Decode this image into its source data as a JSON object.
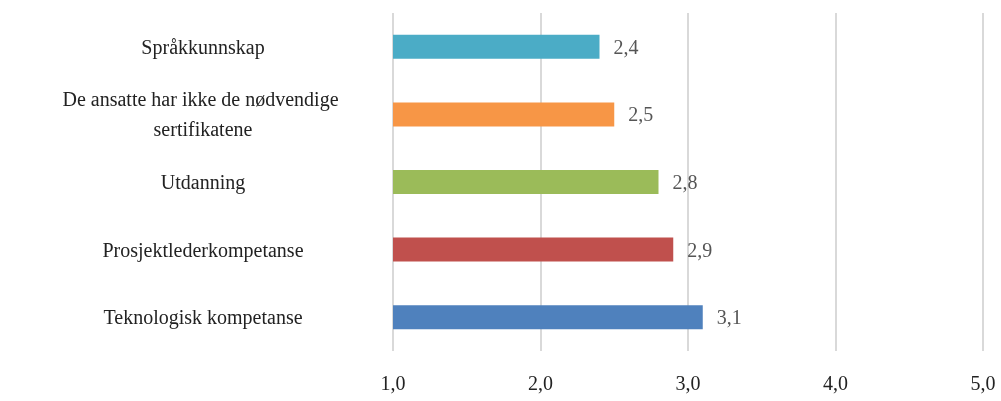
{
  "chart_data": {
    "type": "bar",
    "orientation": "horizontal",
    "categories": [
      "Språkkunnskap",
      "De ansatte har ikke de nødvendige sertifikatene",
      "Utdanning",
      "Prosjektlederkompetanse",
      "Teknologisk kompetanse"
    ],
    "values": [
      2.4,
      2.5,
      2.8,
      2.9,
      3.1
    ],
    "colors": [
      "#4bacc6",
      "#f79646",
      "#9bbb59",
      "#c0504d",
      "#4f81bd"
    ],
    "value_labels": [
      "2,4",
      "2,5",
      "2,8",
      "2,9",
      "3,1"
    ],
    "xlim": [
      1,
      5
    ],
    "xticks": [
      {
        "value": 1,
        "label": "1,0"
      },
      {
        "value": 2,
        "label": "2,0"
      },
      {
        "value": 3,
        "label": "3,0"
      },
      {
        "value": 4,
        "label": "4,0"
      },
      {
        "value": 5,
        "label": "5,0"
      }
    ],
    "grid": "x"
  }
}
